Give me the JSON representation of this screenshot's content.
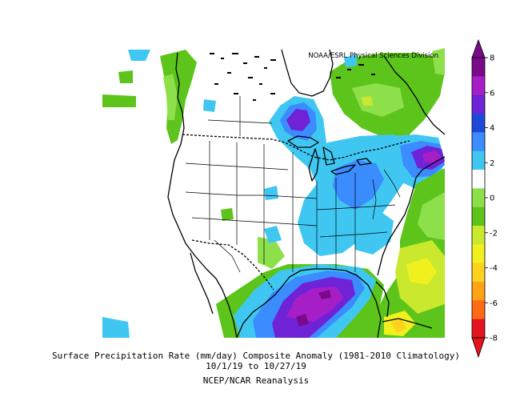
{
  "map": {
    "credit": "NOAA/ESRL Physical Sciences Division",
    "title": "Surface Precipitation Rate (mm/day) Composite Anomaly (1981-2010 Climatology)",
    "date_range": "10/1/19  to 10/27/19",
    "source": "NCEP/NCAR Reanalysis",
    "region": "North America / contiguous United States"
  },
  "colorbar": {
    "tick_labels": [
      "8",
      "6",
      "4",
      "2",
      "0",
      "-2",
      "-4",
      "-6",
      "-8"
    ],
    "bins": [
      {
        "range": "6 to 8",
        "color": "#7a0a8a"
      },
      {
        "range": "4 to 6",
        "color": "#a61fc6"
      },
      {
        "range": "3 to 4",
        "color": "#6f22d6"
      },
      {
        "range": "2 to 3",
        "color": "#1e48d8"
      },
      {
        "range": "1 to 2",
        "color": "#3a8cff"
      },
      {
        "range": "0.5 to 1",
        "color": "#3fc7f2"
      },
      {
        "range": "-0.5 to 0.5",
        "color": "#ffffff"
      },
      {
        "range": "-1 to -0.5",
        "color": "#8ee04a"
      },
      {
        "range": "-2 to -1",
        "color": "#5cc41a"
      },
      {
        "range": "-3 to -2",
        "color": "#c9e82e"
      },
      {
        "range": "-4 to -3",
        "color": "#f0f01e"
      },
      {
        "range": "-5 to -4",
        "color": "#ffd21e"
      },
      {
        "range": "-6 to -5",
        "color": "#ffa214"
      },
      {
        "range": "-7 to -6",
        "color": "#ff6a14"
      },
      {
        "range": "-8 to -7",
        "color": "#e4141e"
      }
    ]
  },
  "anomaly_regions": [
    {
      "area": "Gulf of Mexico / lower Mississippi",
      "level": "strong positive"
    },
    {
      "area": "Upper Great Lakes / Lake Superior",
      "level": "strong positive"
    },
    {
      "area": "New England / Maritime Canada",
      "level": "strong positive"
    },
    {
      "area": "Ohio Valley and Appalachians",
      "level": "positive"
    },
    {
      "area": "Pacific Northwest coast",
      "level": "negative"
    },
    {
      "area": "Hudson Bay / Quebec",
      "level": "negative"
    },
    {
      "area": "Western Atlantic / Florida east",
      "level": "negative"
    },
    {
      "area": "Interior West and Plains",
      "level": "near normal"
    }
  ]
}
